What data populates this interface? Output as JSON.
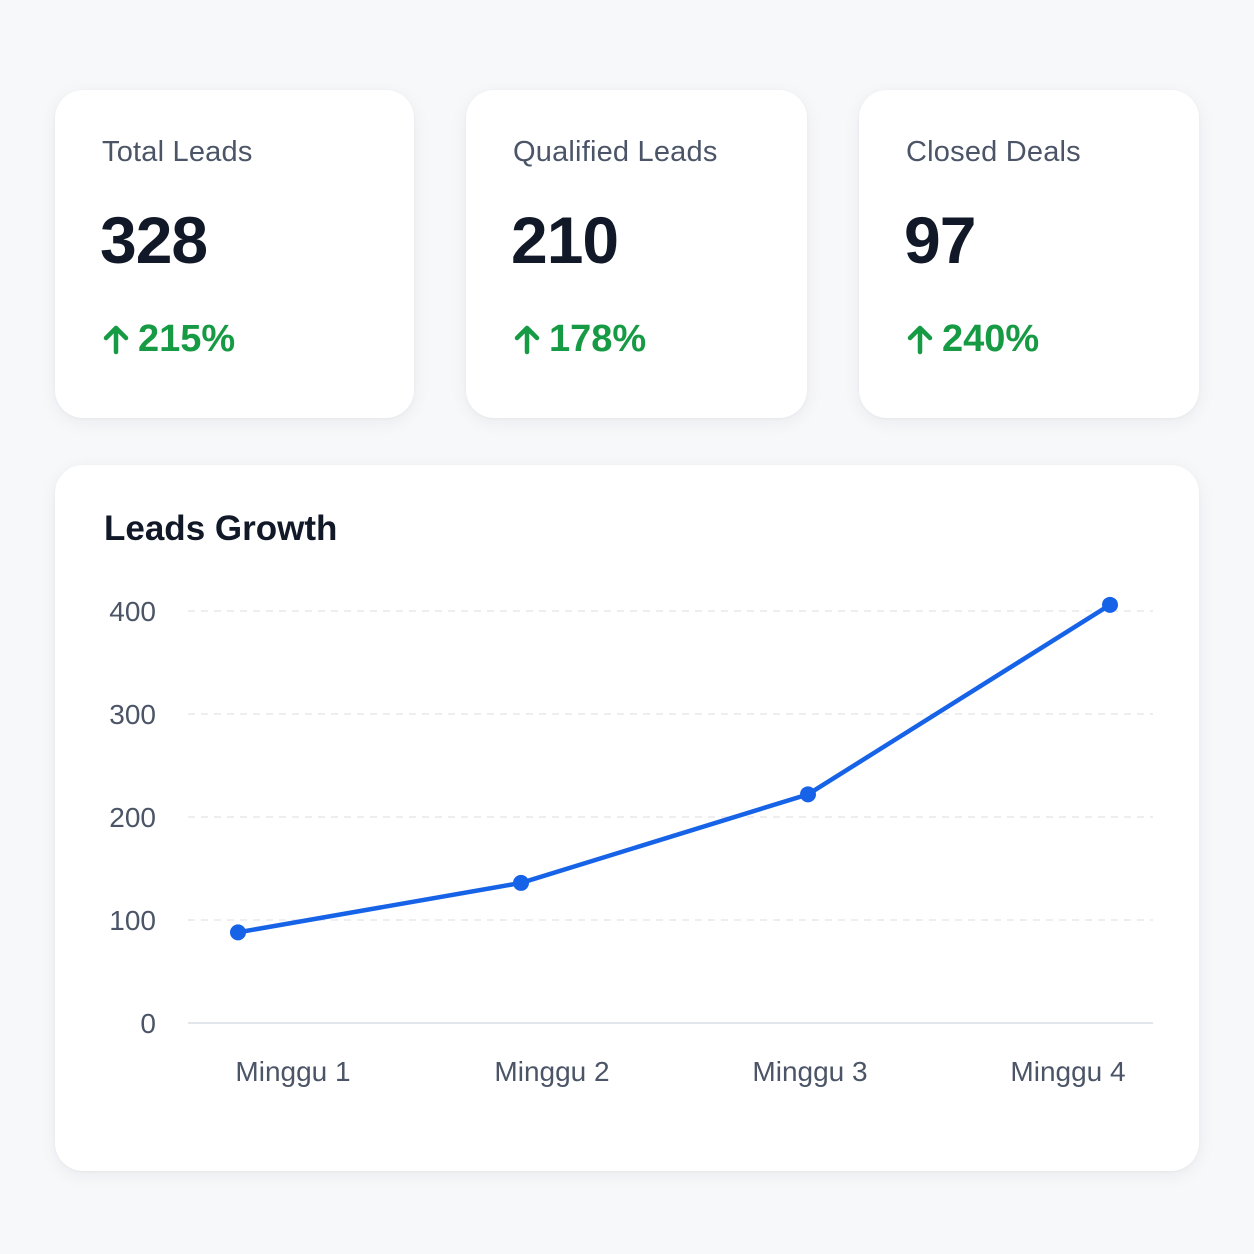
{
  "stats": [
    {
      "label": "Total Leads",
      "value": "328",
      "change": "215%",
      "trend_icon": "arrow-up-icon"
    },
    {
      "label": "Qualified Leads",
      "value": "210",
      "change": "178%",
      "trend_icon": "arrow-up-icon"
    },
    {
      "label": "Closed Deals",
      "value": "97",
      "change": "240%",
      "trend_icon": "arrow-up-icon"
    }
  ],
  "colors": {
    "positive": "#179a44",
    "line": "#1763e8",
    "text_primary": "#111827",
    "text_secondary": "#4b5567"
  },
  "chart_data": {
    "type": "line",
    "title": "Leads Growth",
    "categories": [
      "Minggu 1",
      "Minggu 2",
      "Minggu 3",
      "Minggu 4"
    ],
    "series": [
      {
        "values": [
          88,
          136,
          222,
          406
        ]
      }
    ],
    "ylim": [
      0,
      400
    ],
    "yticks": [
      0,
      100,
      200,
      300,
      400
    ],
    "grid": true,
    "legend": "none"
  }
}
